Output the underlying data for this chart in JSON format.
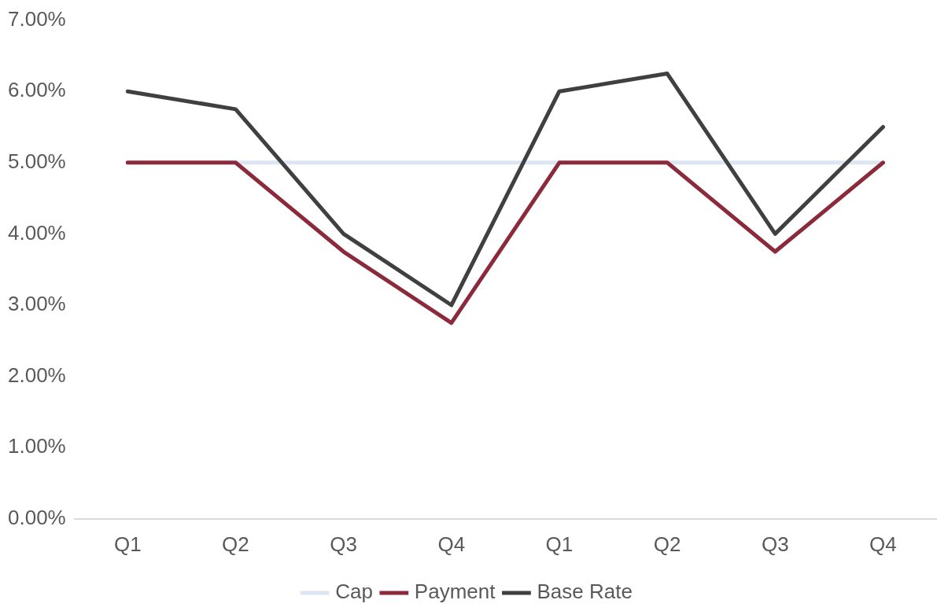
{
  "chart_data": {
    "type": "line",
    "categories": [
      "Q1",
      "Q2",
      "Q3",
      "Q4",
      "Q1",
      "Q2",
      "Q3",
      "Q4"
    ],
    "series": [
      {
        "name": "Cap",
        "color": "#dce6f2",
        "values": [
          5,
          5,
          5,
          5,
          5,
          5,
          5,
          5
        ]
      },
      {
        "name": "Payment",
        "color": "#8b2a3b",
        "values": [
          5,
          5,
          3.75,
          2.75,
          5,
          5,
          3.75,
          5
        ]
      },
      {
        "name": "Base Rate",
        "color": "#404040",
        "values": [
          6,
          5.75,
          4,
          3,
          6,
          6.25,
          4,
          5.5
        ]
      }
    ],
    "ylim": [
      0,
      7
    ],
    "yticks": [
      {
        "value": 0,
        "label": "0.00%"
      },
      {
        "value": 1,
        "label": "1.00%"
      },
      {
        "value": 2,
        "label": "2.00%"
      },
      {
        "value": 3,
        "label": "3.00%"
      },
      {
        "value": 4,
        "label": "4.00%"
      },
      {
        "value": 5,
        "label": "5.00%"
      },
      {
        "value": 6,
        "label": "6.00%"
      },
      {
        "value": 7,
        "label": "7.00%"
      }
    ],
    "grid": false,
    "legend": "bottom",
    "marker": "none",
    "line_style": "solid"
  }
}
